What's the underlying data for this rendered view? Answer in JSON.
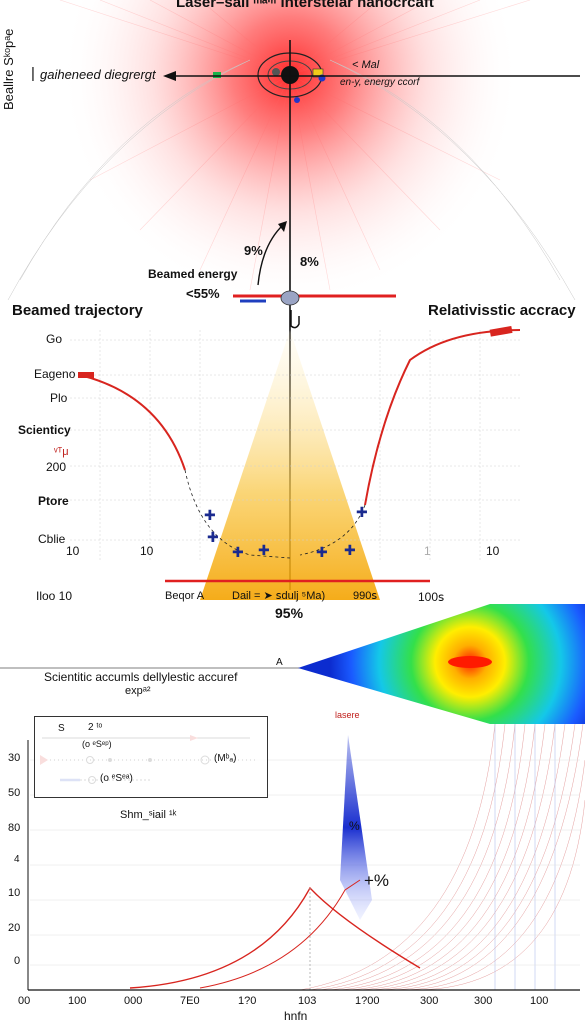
{
  "header": {
    "title": "Laser–sail ᵐᵃⁱⁿ interstelar hanocrcaft",
    "left_vertical_label": "Beallre Sᵏᵒpᵃe",
    "gathered_label": "gaiheneed diegrergt",
    "mal_label": "< Mal",
    "energy_label": "en-y, energy ccorf"
  },
  "beam": {
    "pct_left": "9%",
    "pct_right": "8%",
    "beamed_energy_label": "Beamed energy",
    "beamed_energy_value": "<55%"
  },
  "trajectory_panel": {
    "left_title": "Beamed trajectory",
    "right_title": "Relativisstic accracy",
    "y_labels": [
      "Go",
      "Eageno",
      "Plo",
      "Scienticy",
      "ᵛᵀμ",
      "200",
      "Ptore",
      "Cblie"
    ],
    "x_left_ticks": [
      "10",
      "10"
    ],
    "x_right_ticks": [
      "1",
      "10"
    ],
    "bottom_left": "Iloo 10",
    "bottom_mid_a": "Beqor A",
    "bottom_mid_b": "Dail = ➤ ꜱdulj ⁵Ma)",
    "bottom_right_a": "990ꜱ",
    "bottom_right_b": "100ꜱ",
    "center_pct": "95%"
  },
  "divider": {
    "caption": "Scientitic accumls dellylestic accuref",
    "caption2": "expᵃ²",
    "marker": "A",
    "laser_label": "lasere"
  },
  "legend": {
    "row1_a": "S",
    "row1_b": "2 ᵗᵒ",
    "row2": "(o ᵉSᵉᵖ)",
    "row2_end": "(Mᵇₐ)",
    "row3": "(o ᵉSᵉᵃ)"
  },
  "bottom_chart": {
    "title_fragment": "Shm_ˢiail ¹ᵏ",
    "y_ticks": [
      "30",
      "50",
      "80",
      "10",
      "20",
      "0"
    ],
    "y_small": "4",
    "x_ticks": [
      "00",
      "100",
      "000",
      "7E0",
      "1?0",
      "103",
      "1?00",
      "300",
      "300",
      "100"
    ],
    "x_label": "hnfn",
    "pct_small": "%",
    "pct_big": "+%"
  },
  "colors": {
    "beam_red": "#ff2b2b",
    "glow_orange": "#f5b000",
    "curve_red": "#d8251f",
    "arrow_dark": "#111111",
    "blue": "#1f3fbf"
  }
}
